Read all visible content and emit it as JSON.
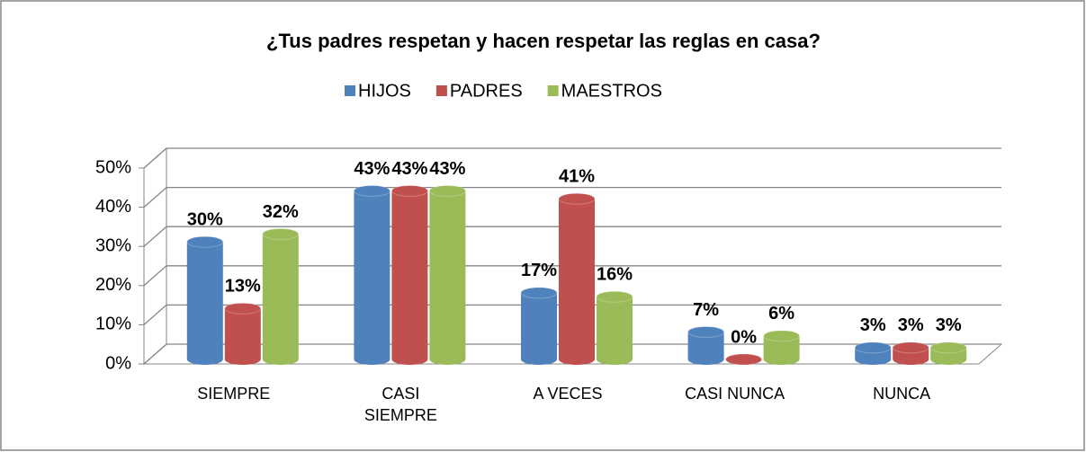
{
  "chart_data": {
    "type": "bar3d",
    "title": "¿Tus padres respetan y hacen respetar las reglas en casa?",
    "categories": [
      "SIEMPRE",
      "CASI SIEMPRE",
      "A VECES",
      "CASI NUNCA",
      "NUNCA"
    ],
    "series": [
      {
        "name": "HIJOS",
        "color": "#4f81bd",
        "values": [
          30,
          43,
          17,
          7,
          3
        ],
        "value_labels": [
          "30%",
          "43%",
          "17%",
          "7%",
          "3%"
        ]
      },
      {
        "name": "PADRES",
        "color": "#c0504d",
        "values": [
          13,
          43,
          41,
          0,
          3
        ],
        "value_labels": [
          "13%",
          "43%",
          "41%",
          "0%",
          "3%"
        ]
      },
      {
        "name": "MAESTROS",
        "color": "#9bbb59",
        "values": [
          32,
          43,
          16,
          6,
          3
        ],
        "value_labels": [
          "32%",
          "43%",
          "16%",
          "6%",
          "3%"
        ]
      }
    ],
    "ylim": [
      0,
      50
    ],
    "yticks": [
      {
        "value": 0,
        "label": "0%"
      },
      {
        "value": 10,
        "label": "10%"
      },
      {
        "value": 20,
        "label": "20%"
      },
      {
        "value": 30,
        "label": "30%"
      },
      {
        "value": 40,
        "label": "40%"
      },
      {
        "value": 50,
        "label": "50%"
      }
    ],
    "grid": true,
    "legend": "top"
  }
}
